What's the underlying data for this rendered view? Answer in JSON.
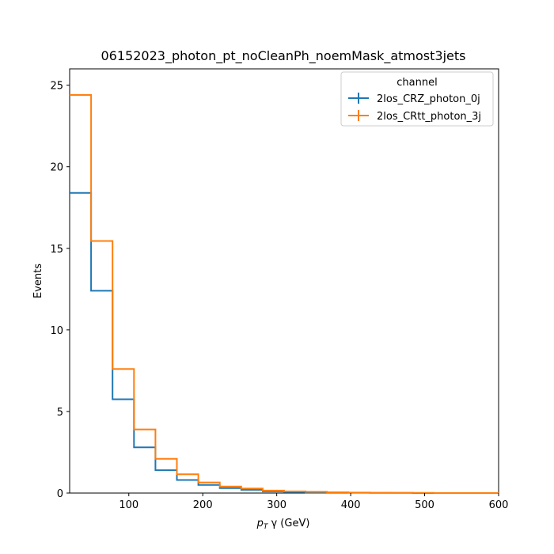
{
  "chart_data": {
    "type": "histogram-step",
    "title": "06152023_photon_pt_noCleanPh_noemMask_atmost3jets",
    "xlabel": "p_T γ (GeV)",
    "xlabel_parts": {
      "p": "p",
      "sub": "T",
      "rest": " γ (GeV)"
    },
    "ylabel": "Events",
    "xlim": [
      20,
      600
    ],
    "ylim": [
      0,
      26
    ],
    "xticks": [
      100,
      200,
      300,
      400,
      500,
      600
    ],
    "yticks": [
      0,
      5,
      10,
      15,
      20,
      25
    ],
    "bin_edges": [
      20,
      49,
      78,
      107,
      136,
      165,
      194,
      223,
      252,
      281,
      310,
      339,
      368,
      397,
      426,
      455,
      484,
      513,
      542,
      571,
      600
    ],
    "legend": {
      "title": "channel",
      "location": "upper right"
    },
    "series": [
      {
        "name": "2los_CRZ_photon_0j",
        "color": "#1f77b4",
        "values": [
          18.4,
          12.4,
          5.75,
          2.8,
          1.4,
          0.8,
          0.5,
          0.3,
          0.2,
          0.1,
          0.06,
          0.04,
          0.03,
          0.02,
          0.01,
          0.01,
          0.0,
          0.0,
          0.0,
          0.0
        ]
      },
      {
        "name": "2los_CRtt_photon_3j",
        "color": "#ff7f0e",
        "values": [
          24.4,
          15.45,
          7.6,
          3.9,
          2.1,
          1.15,
          0.65,
          0.4,
          0.28,
          0.15,
          0.1,
          0.08,
          0.05,
          0.03,
          0.02,
          0.01,
          0.01,
          0.0,
          0.0,
          0.0
        ]
      }
    ]
  }
}
